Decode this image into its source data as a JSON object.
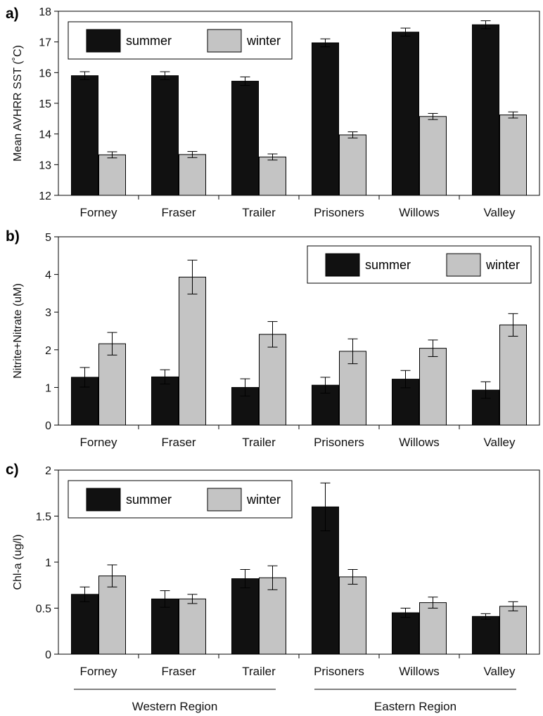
{
  "colors": {
    "summer": "#111111",
    "winter": "#c4c4c4",
    "axis": "#000000"
  },
  "regions": [
    {
      "label": "Western Region",
      "from": 0,
      "to": 2
    },
    {
      "label": "Eastern Region",
      "from": 3,
      "to": 5
    }
  ],
  "chart_data": [
    {
      "panel_label": "a)",
      "type": "bar",
      "ylabel": "Mean AVHRR SST (˚C)",
      "ylim": [
        12,
        18
      ],
      "yticks": [
        12,
        13,
        14,
        15,
        16,
        17,
        18
      ],
      "legend_position": "top-left",
      "categories": [
        "Forney",
        "Fraser",
        "Trailer",
        "Prisoners",
        "Willows",
        "Valley"
      ],
      "series": [
        {
          "name": "summer",
          "values": [
            15.9,
            15.9,
            15.72,
            16.97,
            17.32,
            17.56
          ],
          "errors": [
            0.13,
            0.13,
            0.14,
            0.13,
            0.13,
            0.13
          ]
        },
        {
          "name": "winter",
          "values": [
            13.32,
            13.33,
            13.25,
            13.97,
            14.57,
            14.62
          ],
          "errors": [
            0.1,
            0.1,
            0.1,
            0.1,
            0.1,
            0.1
          ]
        }
      ]
    },
    {
      "panel_label": "b)",
      "type": "bar",
      "ylabel": "Nitrite+Nitrate (uM)",
      "ylim": [
        0,
        5
      ],
      "yticks": [
        0,
        1,
        2,
        3,
        4,
        5
      ],
      "legend_position": "top-right",
      "categories": [
        "Forney",
        "Fraser",
        "Trailer",
        "Prisoners",
        "Willows",
        "Valley"
      ],
      "series": [
        {
          "name": "summer",
          "values": [
            1.27,
            1.28,
            1.0,
            1.06,
            1.22,
            0.93
          ],
          "errors": [
            0.26,
            0.19,
            0.23,
            0.21,
            0.23,
            0.22
          ]
        },
        {
          "name": "winter",
          "values": [
            2.16,
            3.93,
            2.41,
            1.96,
            2.04,
            2.66
          ],
          "errors": [
            0.3,
            0.45,
            0.34,
            0.33,
            0.22,
            0.3
          ]
        }
      ]
    },
    {
      "panel_label": "c)",
      "type": "bar",
      "ylabel": "Chl-a (ug/l)",
      "ylim": [
        0,
        2
      ],
      "yticks": [
        0,
        0.5,
        1,
        1.5,
        2
      ],
      "ytick_labels": [
        "0",
        "0.5",
        "1",
        "1.5",
        "2"
      ],
      "legend_position": "top-left",
      "categories": [
        "Forney",
        "Fraser",
        "Trailer",
        "Prisoners",
        "Willows",
        "Valley"
      ],
      "series": [
        {
          "name": "summer",
          "values": [
            0.65,
            0.6,
            0.82,
            1.6,
            0.45,
            0.41
          ],
          "errors": [
            0.08,
            0.09,
            0.1,
            0.26,
            0.05,
            0.03
          ]
        },
        {
          "name": "winter",
          "values": [
            0.85,
            0.6,
            0.83,
            0.84,
            0.56,
            0.52
          ],
          "errors": [
            0.12,
            0.05,
            0.13,
            0.08,
            0.06,
            0.05
          ]
        }
      ]
    }
  ]
}
